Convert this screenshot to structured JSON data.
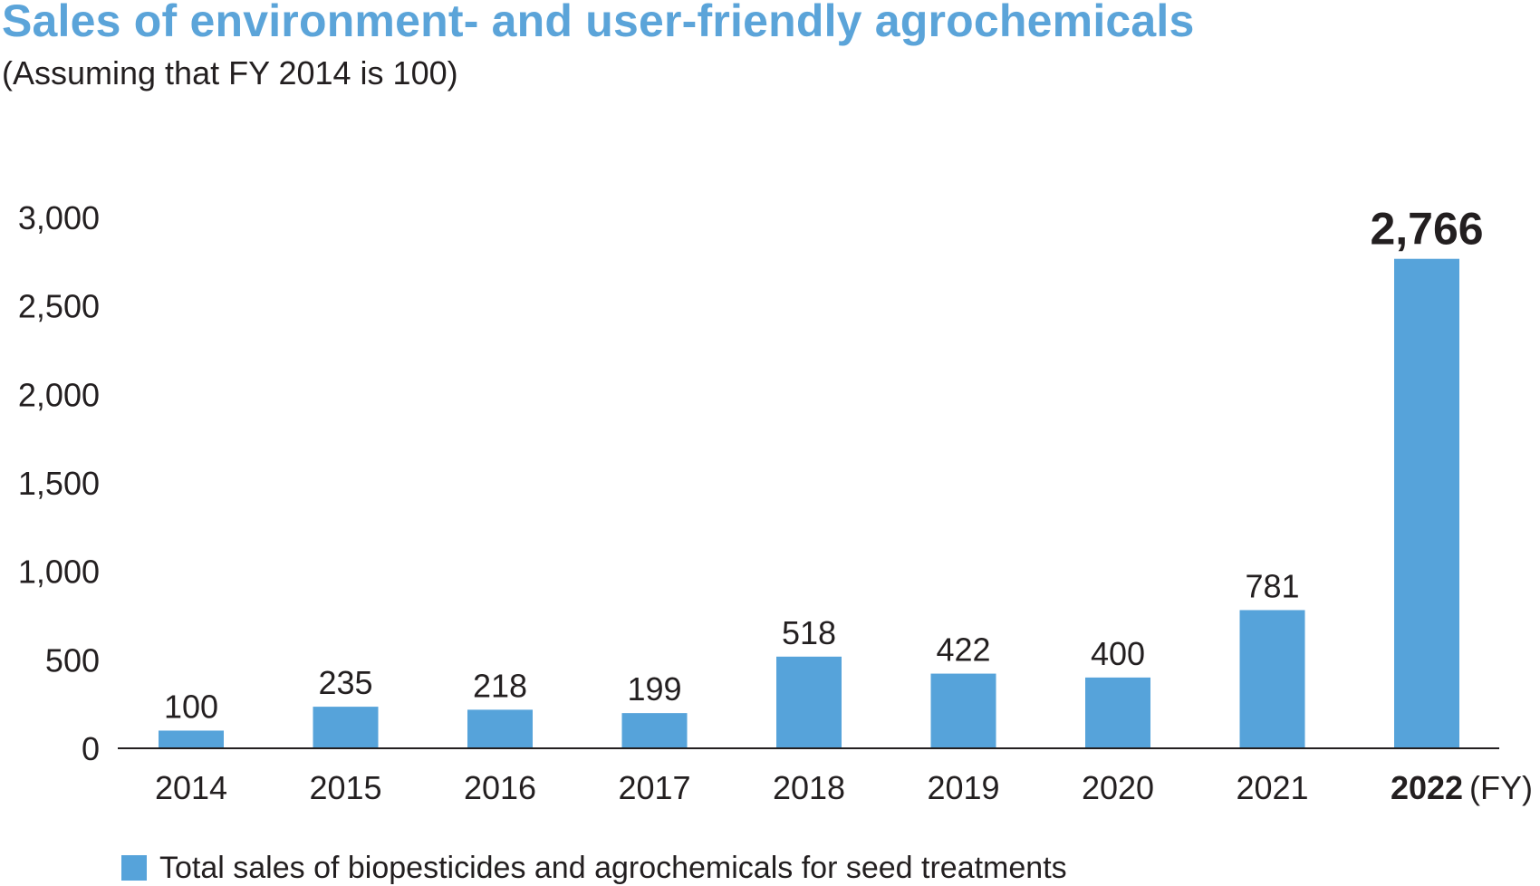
{
  "title": "Sales of environment- and user-friendly agrochemicals",
  "subtitle": "(Assuming that FY 2014 is 100)",
  "colors": {
    "title": "#5ba4d9",
    "bar": "#56a3da",
    "text": "#231f20"
  },
  "chart_data": {
    "type": "bar",
    "title": "Sales of environment- and user-friendly agrochemicals",
    "subtitle": "(Assuming that FY 2014 is 100)",
    "categories": [
      "2014",
      "2015",
      "2016",
      "2017",
      "2018",
      "2019",
      "2020",
      "2021",
      "2022"
    ],
    "values": [
      100,
      235,
      218,
      199,
      518,
      422,
      400,
      781,
      2766
    ],
    "value_labels": [
      "100",
      "235",
      "218",
      "199",
      "518",
      "422",
      "400",
      "781",
      "2,766"
    ],
    "highlighted_category": "2022",
    "x_unit_label": "(FY)",
    "ylim": [
      0,
      3000
    ],
    "yticks": [
      0,
      500,
      1000,
      1500,
      2000,
      2500,
      3000
    ],
    "ytick_labels": [
      "0",
      "500",
      "1,000",
      "1,500",
      "2,000",
      "2,500",
      "3,000"
    ],
    "grid": false,
    "legend_position": "bottom-left",
    "series": [
      {
        "name": "Total sales of biopesticides and agrochemicals for seed treatments",
        "values": [
          100,
          235,
          218,
          199,
          518,
          422,
          400,
          781,
          2766
        ]
      }
    ]
  }
}
